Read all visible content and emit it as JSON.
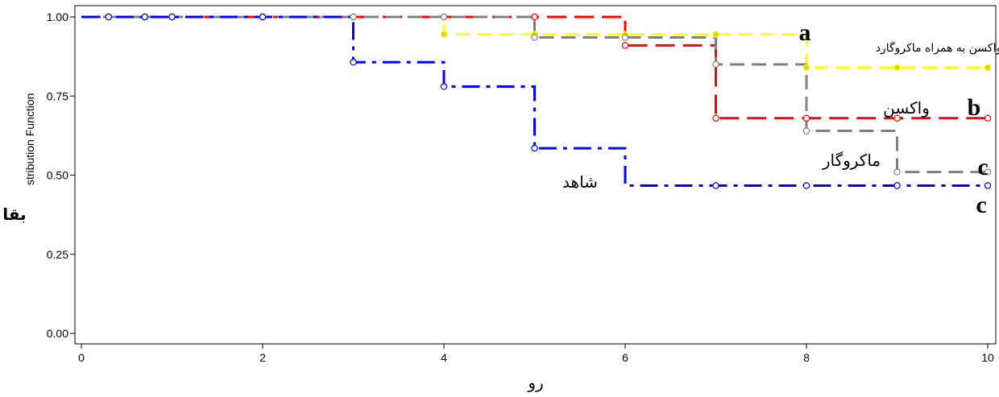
{
  "chart_data": {
    "type": "line",
    "step": true,
    "xlabel": "رو",
    "ylabel": "بقا",
    "ylabel_overlay": "stribution Function",
    "xlim": [
      0,
      10
    ],
    "ylim": [
      0,
      1
    ],
    "x_ticks": [
      "0",
      "2",
      "4",
      "6",
      "8",
      "10"
    ],
    "y_ticks": [
      "0.00",
      "0.25",
      "0.50",
      "0.75",
      "1.00"
    ],
    "grid": false,
    "series": [
      {
        "key": "vaccine_macro",
        "color": "#ffff00",
        "dash": "dash",
        "marker_fill": "#d6d600",
        "label": "واکسن به همراه ماکروگارد",
        "letter": "a",
        "x": [
          0,
          4,
          8,
          10
        ],
        "y": [
          1.0,
          0.945,
          0.84,
          0.84
        ],
        "markers": [
          [
            0.3,
            1.0
          ],
          [
            0.7,
            1.0
          ],
          [
            1,
            1.0
          ],
          [
            2,
            1.0
          ],
          [
            3,
            1.0
          ],
          [
            4,
            0.945
          ],
          [
            5,
            0.945
          ],
          [
            6,
            0.945
          ],
          [
            7,
            0.945
          ],
          [
            8,
            0.84
          ],
          [
            9,
            0.84
          ],
          [
            10,
            0.84
          ]
        ]
      },
      {
        "key": "vaccine",
        "color": "#ff0000",
        "dash": "longdash",
        "marker_fill": "none",
        "label": "واکسن",
        "letter": "b",
        "x": [
          0,
          6,
          7,
          10
        ],
        "y": [
          1.0,
          0.91,
          0.68,
          0.68
        ],
        "markers": [
          [
            0.3,
            1.0
          ],
          [
            0.7,
            1.0
          ],
          [
            1,
            1.0
          ],
          [
            2,
            1.0
          ],
          [
            3,
            1.0
          ],
          [
            4,
            1.0
          ],
          [
            5,
            1.0
          ],
          [
            6,
            0.91
          ],
          [
            7,
            0.68
          ],
          [
            8,
            0.68
          ],
          [
            9,
            0.68
          ],
          [
            10,
            0.68
          ]
        ]
      },
      {
        "key": "macro",
        "color": "#808080",
        "dash": "dash",
        "marker_fill": "none",
        "label": "ماکروگار",
        "letter": "c",
        "x": [
          0,
          5,
          7,
          8,
          9,
          10
        ],
        "y": [
          1.0,
          0.935,
          0.85,
          0.64,
          0.51,
          0.51
        ],
        "markers": [
          [
            0.3,
            1.0
          ],
          [
            0.7,
            1.0
          ],
          [
            1,
            1.0
          ],
          [
            2,
            1.0
          ],
          [
            3,
            1.0
          ],
          [
            4,
            1.0
          ],
          [
            5,
            0.935
          ],
          [
            6,
            0.935
          ],
          [
            7,
            0.85
          ],
          [
            8,
            0.64
          ],
          [
            9,
            0.51
          ],
          [
            10,
            0.51
          ]
        ]
      },
      {
        "key": "control",
        "color": "#0000ff",
        "dash": "dashdot",
        "marker_fill": "none",
        "label": "شاهد",
        "letter": "c",
        "x": [
          0,
          3,
          4,
          5,
          6,
          10
        ],
        "y": [
          1.0,
          0.857,
          0.78,
          0.585,
          0.467,
          0.467
        ],
        "markers": [
          [
            0.3,
            1.0
          ],
          [
            0.7,
            1.0
          ],
          [
            1,
            1.0
          ],
          [
            2,
            1.0
          ],
          [
            3,
            0.857
          ],
          [
            4,
            0.78
          ],
          [
            5,
            0.585
          ],
          [
            7,
            0.467
          ],
          [
            8,
            0.467
          ],
          [
            9,
            0.467
          ],
          [
            10,
            0.467
          ]
        ]
      }
    ]
  }
}
